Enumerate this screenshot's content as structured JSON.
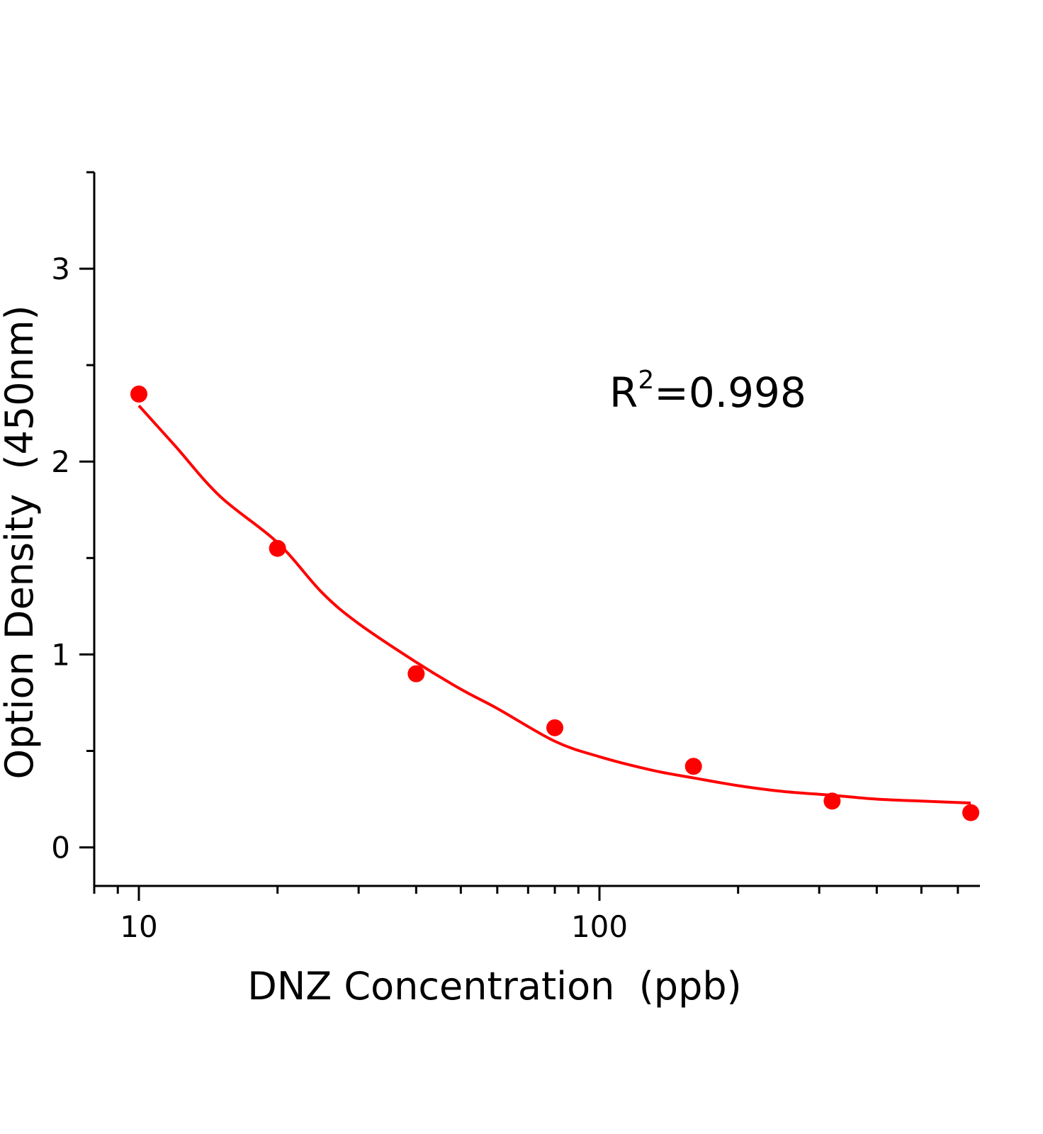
{
  "chart_data": {
    "type": "scatter",
    "title": "",
    "xlabel": "DNZ Concentration  (ppb)",
    "ylabel": "Option Density  (450nm)",
    "xscale": "log",
    "xlim": [
      8,
      670
    ],
    "ylim": [
      -0.2,
      3.5
    ],
    "x_ticks": [
      10,
      100
    ],
    "x_tick_labels": [
      "10",
      "100"
    ],
    "y_ticks": [
      0,
      1,
      2,
      3
    ],
    "y_tick_labels": [
      "0",
      "1",
      "2",
      "3"
    ],
    "grid": false,
    "legend": "none",
    "annotation": {
      "base": "R",
      "sup": "2",
      "rest": "=0.998"
    },
    "colors": {
      "series": "#ff0000",
      "axis": "#000000"
    },
    "series": [
      {
        "kind": "points",
        "x": [
          10,
          20,
          40,
          80,
          160,
          320,
          640
        ],
        "y": [
          2.35,
          1.55,
          0.9,
          0.62,
          0.42,
          0.24,
          0.18
        ]
      },
      {
        "kind": "fit-line",
        "x": [
          10,
          12,
          15,
          20,
          25,
          30,
          40,
          50,
          60,
          80,
          100,
          130,
          160,
          200,
          250,
          320,
          400,
          500,
          640
        ],
        "y": [
          2.29,
          2.08,
          1.82,
          1.58,
          1.32,
          1.16,
          0.96,
          0.82,
          0.72,
          0.55,
          0.47,
          0.4,
          0.36,
          0.32,
          0.29,
          0.27,
          0.25,
          0.24,
          0.23
        ]
      }
    ]
  }
}
